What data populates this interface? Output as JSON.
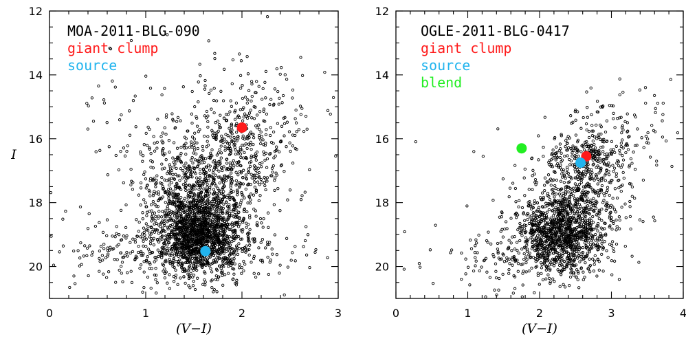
{
  "chart_data": [
    {
      "type": "scatter",
      "title": "MOA-2011-BLG-090",
      "xlabel": "(V−I)",
      "ylabel": "I",
      "xlim": [
        0,
        3
      ],
      "ylim": [
        21,
        12
      ],
      "y_inverted": true,
      "x_ticks": [
        "0",
        "1",
        "2",
        "3"
      ],
      "y_ticks": [
        "12",
        "14",
        "16",
        "18",
        "20"
      ],
      "series": [
        {
          "kind": "field-stars",
          "color": "#000000",
          "marker": "open-circle",
          "groups": [
            {
              "cx": 1.55,
              "cy": 18.9,
              "sx": 0.22,
              "sy": 0.65,
              "n": 1400
            },
            {
              "cx": 1.45,
              "cy": 17.6,
              "sx": 0.25,
              "sy": 0.9,
              "n": 450
            },
            {
              "cx": 1.95,
              "cy": 16.8,
              "sx": 0.22,
              "sy": 1.1,
              "n": 380
            },
            {
              "cx": 1.35,
              "cy": 19.6,
              "sx": 0.55,
              "sy": 0.5,
              "n": 350
            },
            {
              "cx": 2.05,
              "cy": 15.3,
              "sx": 0.35,
              "sy": 1.0,
              "n": 160
            },
            {
              "cx": 1.1,
              "cy": 16.0,
              "sx": 0.35,
              "sy": 1.2,
              "n": 80
            },
            {
              "cx": 1.5,
              "cy": 18.5,
              "sx": 1.0,
              "sy": 1.6,
              "n": 110
            }
          ]
        },
        {
          "name": "giant clump",
          "color": "#ff1a1a",
          "points": [
            {
              "x": 2.0,
              "y": 15.65
            }
          ]
        },
        {
          "name": "source",
          "color": "#22b4ee",
          "points": [
            {
              "x": 1.62,
              "y": 19.52
            }
          ]
        }
      ]
    },
    {
      "type": "scatter",
      "title": "OGLE-2011-BLG-0417",
      "xlabel": "(V−I)",
      "ylabel": "",
      "xlim": [
        0,
        4
      ],
      "ylim": [
        21,
        12
      ],
      "y_inverted": true,
      "x_ticks": [
        "0",
        "1",
        "2",
        "3",
        "4"
      ],
      "y_ticks": [
        "12",
        "14",
        "16",
        "18",
        "20"
      ],
      "series": [
        {
          "kind": "field-stars",
          "color": "#000000",
          "marker": "open-circle",
          "groups": [
            {
              "cx": 2.3,
              "cy": 19.0,
              "sx": 0.3,
              "sy": 0.6,
              "n": 1100
            },
            {
              "cx": 2.55,
              "cy": 17.6,
              "sx": 0.35,
              "sy": 0.7,
              "n": 350
            },
            {
              "cx": 2.7,
              "cy": 16.6,
              "sx": 0.3,
              "sy": 0.4,
              "n": 220
            },
            {
              "cx": 3.1,
              "cy": 15.6,
              "sx": 0.4,
              "sy": 0.6,
              "n": 100
            },
            {
              "cx": 1.6,
              "cy": 19.7,
              "sx": 0.5,
              "sy": 0.5,
              "n": 120
            },
            {
              "cx": 2.2,
              "cy": 18.5,
              "sx": 0.9,
              "sy": 1.4,
              "n": 70
            }
          ]
        },
        {
          "name": "giant clump",
          "color": "#ff1a1a",
          "points": [
            {
              "x": 2.65,
              "y": 16.55
            }
          ]
        },
        {
          "name": "source",
          "color": "#22b4ee",
          "points": [
            {
              "x": 2.57,
              "y": 16.75
            }
          ]
        },
        {
          "name": "blend",
          "color": "#22ee22",
          "points": [
            {
              "x": 1.75,
              "y": 16.3
            }
          ]
        }
      ]
    }
  ]
}
